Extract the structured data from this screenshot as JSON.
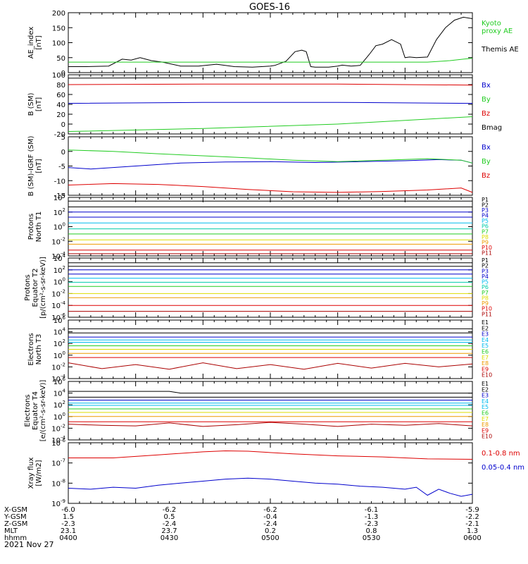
{
  "title": "GOES-16",
  "date": "2021 Nov 27",
  "colors": {
    "black": "#000000",
    "green": "#22cc22",
    "blue": "#0000cc",
    "red": "#dd0000",
    "cyan": "#00bbee",
    "teal": "#00ccaa",
    "yellow": "#dddd00",
    "orange": "#ee9900",
    "darkred": "#aa0000"
  },
  "ephemeris": {
    "rows": [
      {
        "label": "X-GSM",
        "values": [
          "-6.0",
          "-6.2",
          "-6.2",
          "-6.1",
          "-5.9"
        ]
      },
      {
        "label": "Y-GSM",
        "values": [
          "1.5",
          "0.5",
          "-0.4",
          "-1.3",
          "-2.2"
        ]
      },
      {
        "label": "Z-GSM",
        "values": [
          "-2.3",
          "-2.4",
          "-2.4",
          "-2.3",
          "-2.1"
        ]
      },
      {
        "label": "MLT",
        "values": [
          "23.1",
          "23.7",
          "0.2",
          "0.8",
          "1.3"
        ]
      },
      {
        "label": "hhmm",
        "values": [
          "0400",
          "0430",
          "0500",
          "0530",
          "0600"
        ]
      }
    ]
  },
  "chart_data": [
    {
      "type": "line",
      "ylabel": "AE_index\n[nT]",
      "ylim": [
        0,
        200
      ],
      "yticks": [
        "0",
        "50",
        "100",
        "150",
        "200"
      ],
      "series": [
        {
          "name": "Themis AE",
          "color": "black",
          "x": [
            0,
            8,
            18,
            24,
            28,
            32,
            37,
            42,
            50,
            58,
            66,
            74,
            82,
            90,
            92,
            97,
            101,
            104,
            106,
            108,
            110,
            116,
            120,
            122,
            126,
            130,
            134,
            137,
            140,
            144,
            148,
            150,
            152,
            155,
            160,
            164,
            168,
            172,
            176,
            180
          ],
          "y": [
            20,
            20,
            22,
            45,
            42,
            50,
            40,
            35,
            22,
            22,
            28,
            20,
            18,
            22,
            24,
            38,
            70,
            75,
            70,
            20,
            18,
            18,
            22,
            25,
            22,
            24,
            60,
            90,
            95,
            110,
            95,
            50,
            52,
            50,
            52,
            110,
            150,
            175,
            185,
            180
          ]
        },
        {
          "name": "Kyoto\nproxy AE",
          "color": "green",
          "x": [
            0,
            40,
            80,
            120,
            160,
            170,
            176,
            180
          ],
          "y": [
            35,
            35,
            35,
            35,
            35,
            40,
            45,
            48
          ]
        }
      ]
    },
    {
      "type": "line",
      "ylabel": "B (SM)\n[nT]",
      "ylim": [
        -20,
        100
      ],
      "yticks": [
        "-20",
        "0",
        "20",
        "40",
        "60",
        "80",
        "100"
      ],
      "series": [
        {
          "name": "Bx",
          "color": "blue",
          "x": [
            0,
            60,
            120,
            180
          ],
          "y": [
            42,
            44,
            44,
            42
          ]
        },
        {
          "name": "By",
          "color": "green",
          "x": [
            0,
            60,
            120,
            180
          ],
          "y": [
            -15,
            -9,
            0,
            15
          ]
        },
        {
          "name": "Bz",
          "color": "red",
          "x": [
            0,
            60,
            120,
            180
          ],
          "y": [
            80,
            81,
            81,
            79
          ]
        },
        {
          "name": "Bmag",
          "color": "black",
          "x": [
            0,
            60,
            120,
            180
          ],
          "y": [
            93,
            94,
            94,
            94
          ]
        }
      ]
    },
    {
      "type": "line",
      "ylabel": "B (SM)-IGRF (SM)\n[nT]",
      "ylim": [
        -15,
        5
      ],
      "yticks": [
        "-15",
        "-10",
        "-5",
        "0",
        "5"
      ],
      "series": [
        {
          "name": "Bx",
          "color": "blue",
          "x": [
            0,
            10,
            30,
            50,
            70,
            90,
            110,
            130,
            150,
            165,
            175,
            180
          ],
          "y": [
            -5.5,
            -6,
            -5,
            -4,
            -3.6,
            -3.5,
            -3.8,
            -3.5,
            -3.2,
            -2.8,
            -3,
            -4
          ]
        },
        {
          "name": "By",
          "color": "green",
          "x": [
            0,
            20,
            40,
            60,
            80,
            100,
            120,
            140,
            160,
            175,
            180
          ],
          "y": [
            0.5,
            0,
            -0.8,
            -1.5,
            -2.2,
            -3,
            -3.5,
            -3,
            -2.5,
            -3,
            -4
          ]
        },
        {
          "name": "Bz",
          "color": "red",
          "x": [
            0,
            20,
            40,
            60,
            80,
            100,
            120,
            140,
            160,
            175,
            180
          ],
          "y": [
            -11.5,
            -11,
            -11.3,
            -12,
            -13,
            -13.8,
            -14,
            -13.7,
            -13.2,
            -12.5,
            -14
          ]
        }
      ]
    },
    {
      "type": "line",
      "ylabel": "Protons\nNorth T1",
      "ylim": [
        -4,
        4
      ],
      "yticks": [
        "10^-4",
        "10^-2",
        "10^0",
        "10^2",
        "10^4"
      ],
      "series": [
        {
          "name": "P1",
          "color": "black",
          "x": [
            0,
            180
          ],
          "y": [
            3.5,
            3.5
          ]
        },
        {
          "name": "P2",
          "color": "black",
          "x": [
            0,
            180
          ],
          "y": [
            2.7,
            2.7
          ]
        },
        {
          "name": "P3",
          "color": "blue",
          "x": [
            0,
            180
          ],
          "y": [
            2.0,
            2.0
          ]
        },
        {
          "name": "P4",
          "color": "blue",
          "x": [
            0,
            180
          ],
          "y": [
            1.3,
            1.3
          ]
        },
        {
          "name": "P5",
          "color": "cyan",
          "x": [
            0,
            180
          ],
          "y": [
            0.5,
            0.5
          ]
        },
        {
          "name": "P6",
          "color": "teal",
          "x": [
            0,
            180
          ],
          "y": [
            -0.3,
            -0.3
          ]
        },
        {
          "name": "P7",
          "color": "green",
          "x": [
            0,
            180
          ],
          "y": [
            -1.0,
            -1.0
          ]
        },
        {
          "name": "P8",
          "color": "yellow",
          "x": [
            0,
            180
          ],
          "y": [
            -1.8,
            -1.8
          ]
        },
        {
          "name": "P9",
          "color": "orange",
          "x": [
            0,
            180
          ],
          "y": [
            -2.4,
            -2.4
          ]
        },
        {
          "name": "P10",
          "color": "red",
          "x": [
            0,
            180
          ],
          "y": [
            -3.2,
            -3.2
          ]
        },
        {
          "name": "P11",
          "color": "darkred",
          "x": [
            0,
            180
          ],
          "y": [
            -3.7,
            -3.7
          ]
        }
      ]
    },
    {
      "type": "line",
      "ylabel": "Protons\nEquator T2\n[p/(cm²-s-sr-keV)]",
      "ylim": [
        -6,
        4
      ],
      "yticks": [
        "10^-6",
        "10^-4",
        "10^-2",
        "10^0",
        "10^2",
        "10^4"
      ],
      "series": [
        {
          "name": "P1",
          "color": "black",
          "x": [
            0,
            180
          ],
          "y": [
            3.2,
            3.2
          ]
        },
        {
          "name": "P2",
          "color": "black",
          "x": [
            0,
            180
          ],
          "y": [
            2.6,
            2.6
          ]
        },
        {
          "name": "P3",
          "color": "blue",
          "x": [
            0,
            180
          ],
          "y": [
            2.0,
            2.0
          ]
        },
        {
          "name": "P4",
          "color": "blue",
          "x": [
            0,
            180
          ],
          "y": [
            1.3,
            1.3
          ]
        },
        {
          "name": "P5",
          "color": "cyan",
          "x": [
            0,
            180
          ],
          "y": [
            0.6,
            0.6
          ]
        },
        {
          "name": "P6",
          "color": "teal",
          "x": [
            0,
            180
          ],
          "y": [
            -0.1,
            -0.1
          ]
        },
        {
          "name": "P7",
          "color": "green",
          "x": [
            0,
            180
          ],
          "y": [
            -0.8,
            -0.8
          ]
        },
        {
          "name": "P8",
          "color": "yellow",
          "x": [
            0,
            180
          ],
          "y": [
            -2.0,
            -2.0
          ]
        },
        {
          "name": "P9",
          "color": "orange",
          "x": [
            0,
            180
          ],
          "y": [
            -2.7,
            -2.7
          ]
        },
        {
          "name": "P10",
          "color": "red",
          "x": [
            0,
            180
          ],
          "y": [
            -4.0,
            -4.0
          ]
        },
        {
          "name": "P11",
          "color": "darkred",
          "x": [
            0,
            180
          ],
          "y": [
            -5.0,
            -5.0
          ]
        }
      ]
    },
    {
      "type": "line",
      "ylabel": "Electrons\nNorth T3",
      "ylim": [
        -4,
        6
      ],
      "yticks": [
        "10^-4",
        "10^-2",
        "10^0",
        "10^2",
        "10^4",
        "10^6"
      ],
      "series": [
        {
          "name": "E1",
          "color": "black",
          "x": [
            0,
            180
          ],
          "y": [
            4.5,
            4.5
          ]
        },
        {
          "name": "E2",
          "color": "black",
          "x": [
            0,
            180
          ],
          "y": [
            3.8,
            3.8
          ]
        },
        {
          "name": "E3",
          "color": "blue",
          "x": [
            0,
            180
          ],
          "y": [
            3.1,
            3.1
          ]
        },
        {
          "name": "E4",
          "color": "cyan",
          "x": [
            0,
            180
          ],
          "y": [
            2.6,
            2.6
          ]
        },
        {
          "name": "E5",
          "color": "cyan",
          "x": [
            0,
            180
          ],
          "y": [
            2.2,
            2.2
          ]
        },
        {
          "name": "E6",
          "color": "green",
          "x": [
            0,
            180
          ],
          "y": [
            1.6,
            1.6
          ]
        },
        {
          "name": "E7",
          "color": "yellow",
          "x": [
            0,
            180
          ],
          "y": [
            1.0,
            1.0
          ]
        },
        {
          "name": "E8",
          "color": "orange",
          "x": [
            0,
            180
          ],
          "y": [
            0.3,
            0.3
          ]
        },
        {
          "name": "E9",
          "color": "red",
          "x": [
            0,
            180
          ],
          "y": [
            -0.4,
            -0.4
          ]
        },
        {
          "name": "E10",
          "color": "darkred",
          "x": [
            0,
            15,
            30,
            45,
            60,
            75,
            90,
            105,
            120,
            135,
            150,
            165,
            180
          ],
          "y": [
            -1.3,
            -2.3,
            -1.6,
            -2.4,
            -1.3,
            -2.3,
            -1.6,
            -2.4,
            -1.4,
            -2.2,
            -1.4,
            -2.0,
            -1.5
          ]
        }
      ]
    },
    {
      "type": "line",
      "ylabel": "Electrons\nEquator T4\n[e/(cm²-s-sr-keV)]",
      "ylim": [
        -4,
        6
      ],
      "yticks": [
        "10^-4",
        "10^-2",
        "10^0",
        "10^2",
        "10^4",
        "10^6"
      ],
      "series": [
        {
          "name": "E1",
          "color": "black",
          "x": [
            0,
            45,
            50,
            180
          ],
          "y": [
            4.3,
            4.3,
            4.0,
            4.0
          ]
        },
        {
          "name": "E2",
          "color": "black",
          "x": [
            0,
            180
          ],
          "y": [
            3.3,
            3.3
          ]
        },
        {
          "name": "E3",
          "color": "blue",
          "x": [
            0,
            180
          ],
          "y": [
            2.8,
            2.8
          ]
        },
        {
          "name": "E4",
          "color": "cyan",
          "x": [
            0,
            180
          ],
          "y": [
            2.3,
            2.3
          ]
        },
        {
          "name": "E5",
          "color": "cyan",
          "x": [
            0,
            180
          ],
          "y": [
            1.9,
            1.9
          ]
        },
        {
          "name": "E6",
          "color": "green",
          "x": [
            0,
            180
          ],
          "y": [
            1.3,
            1.3
          ]
        },
        {
          "name": "E7",
          "color": "yellow",
          "x": [
            0,
            180
          ],
          "y": [
            0.7,
            0.7
          ]
        },
        {
          "name": "E8",
          "color": "orange",
          "x": [
            0,
            180
          ],
          "y": [
            0.0,
            0.0
          ]
        },
        {
          "name": "E9",
          "color": "red",
          "x": [
            0,
            180
          ],
          "y": [
            -0.9,
            -0.9
          ]
        },
        {
          "name": "E10",
          "color": "darkred",
          "x": [
            0,
            15,
            30,
            45,
            60,
            75,
            90,
            105,
            120,
            135,
            150,
            165,
            180
          ],
          "y": [
            -1.3,
            -1.5,
            -1.6,
            -1.1,
            -1.7,
            -1.4,
            -1.0,
            -1.3,
            -1.7,
            -1.3,
            -1.5,
            -1.2,
            -1.6
          ]
        }
      ]
    },
    {
      "type": "line",
      "ylabel": "Xray flux\n[W/m2]",
      "ylim": [
        -9,
        -6
      ],
      "yticks": [
        "10^-9",
        "10^-8",
        "10^-7",
        "10^-6"
      ],
      "series": [
        {
          "name": "0.1-0.8 nm",
          "color": "red",
          "x": [
            0,
            20,
            40,
            60,
            70,
            80,
            100,
            120,
            140,
            160,
            180
          ],
          "y": [
            -6.75,
            -6.75,
            -6.6,
            -6.45,
            -6.4,
            -6.42,
            -6.55,
            -6.65,
            -6.7,
            -6.8,
            -6.82
          ]
        },
        {
          "name": "0.05-0.4 nm",
          "color": "blue",
          "x": [
            0,
            10,
            20,
            30,
            40,
            50,
            60,
            70,
            80,
            90,
            100,
            110,
            120,
            130,
            140,
            150,
            155,
            160,
            165,
            170,
            175,
            180
          ],
          "y": [
            -8.25,
            -8.3,
            -8.2,
            -8.25,
            -8.1,
            -8.0,
            -7.9,
            -7.8,
            -7.75,
            -7.8,
            -7.9,
            -8.0,
            -8.05,
            -8.15,
            -8.2,
            -8.3,
            -8.2,
            -8.6,
            -8.3,
            -8.5,
            -8.65,
            -8.55
          ]
        }
      ]
    }
  ],
  "panel_label_x": [
    {
      "text": "Kyoto\nproxy AE",
      "color": "green"
    },
    {
      "text": "Themis AE",
      "color": "black"
    }
  ]
}
